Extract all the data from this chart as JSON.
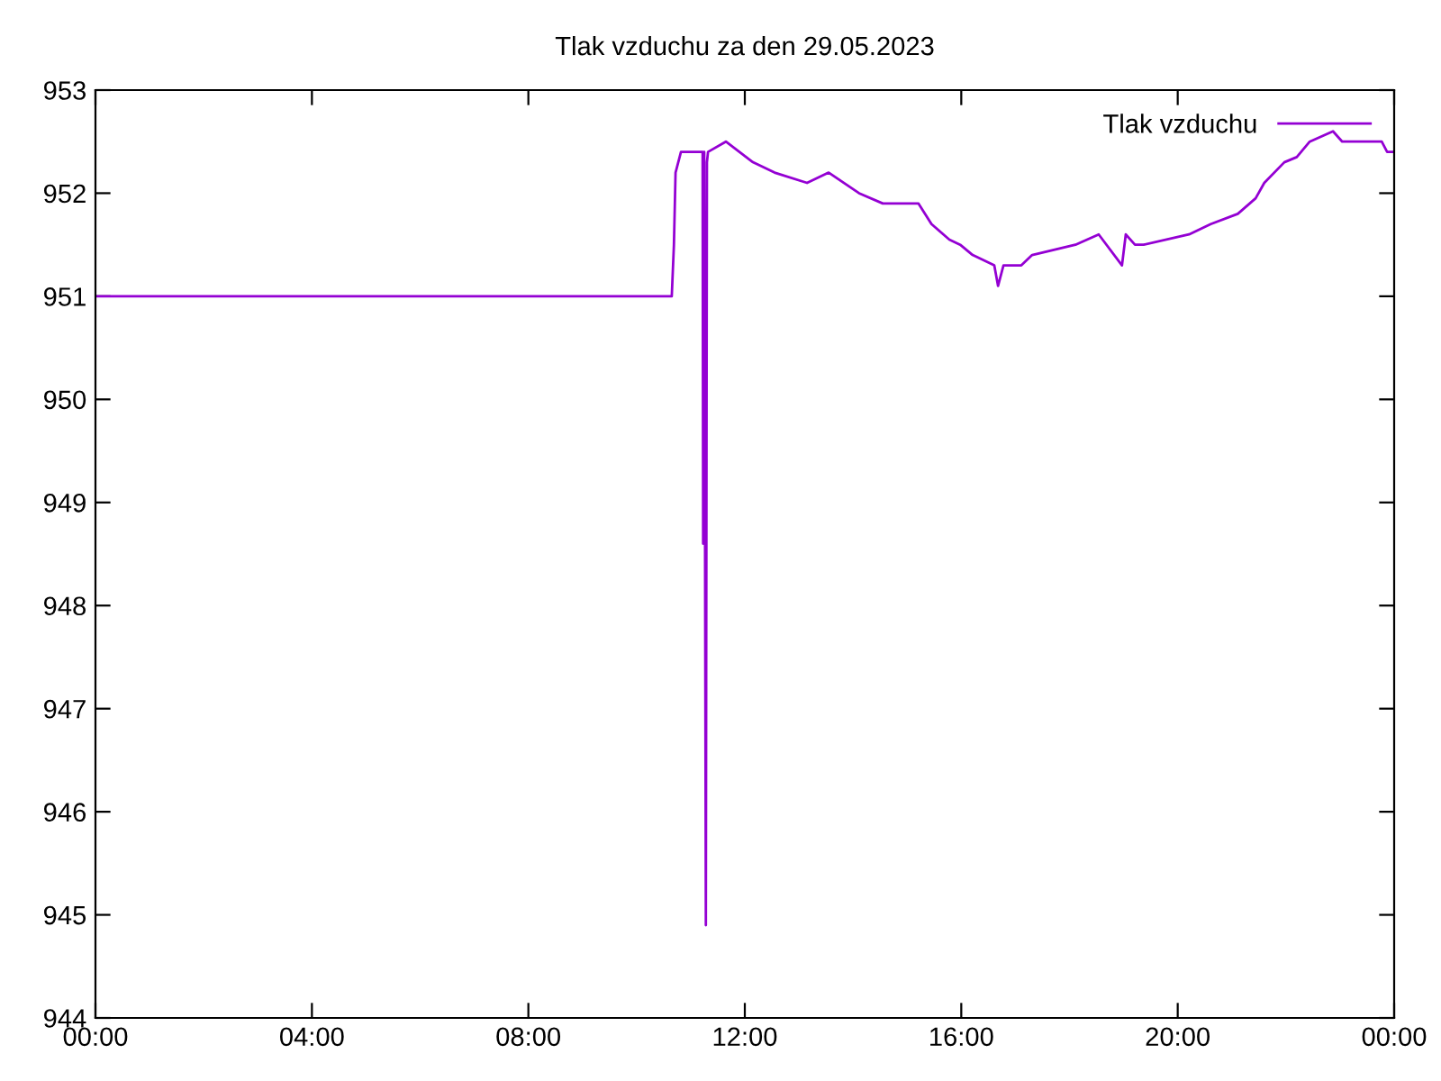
{
  "chart_data": {
    "type": "line",
    "title": "Tlak vzduchu za den 29.05.2023",
    "x": [
      0,
      10.65,
      10.69,
      10.72,
      10.82,
      11.22,
      11.23,
      11.25,
      11.28,
      11.3,
      11.32,
      11.65,
      12.15,
      12.55,
      13.15,
      13.55,
      14.11,
      14.55,
      15.21,
      15.45,
      15.78,
      15.98,
      16.21,
      16.61,
      16.68,
      16.78,
      17.11,
      17.31,
      18.11,
      18.54,
      18.97,
      19.04,
      19.21,
      19.37,
      20.21,
      20.61,
      21.11,
      21.44,
      21.6,
      21.97,
      22.2,
      22.44,
      22.87,
      23.04,
      23.77,
      23.87,
      24
    ],
    "series": [
      {
        "name": "Tlak vzduchu",
        "color": "#9400d3",
        "values": [
          951,
          951,
          951.5,
          952.2,
          952.4,
          952.4,
          948.6,
          952.4,
          944.9,
          952.3,
          952.4,
          952.5,
          952.3,
          952.2,
          952.1,
          952.2,
          952.0,
          951.9,
          951.9,
          951.7,
          951.55,
          951.5,
          951.4,
          951.3,
          951.1,
          951.3,
          951.3,
          951.4,
          951.5,
          951.6,
          951.3,
          951.6,
          951.5,
          951.5,
          951.6,
          951.7,
          951.8,
          951.95,
          952.1,
          952.3,
          952.35,
          952.5,
          952.6,
          952.5,
          952.5,
          952.4,
          952.4
        ]
      }
    ],
    "xlim": [
      0,
      24
    ],
    "xticks": [
      {
        "value": 0,
        "label": "00:00"
      },
      {
        "value": 4,
        "label": "04:00"
      },
      {
        "value": 8,
        "label": "08:00"
      },
      {
        "value": 12,
        "label": "12:00"
      },
      {
        "value": 16,
        "label": "16:00"
      },
      {
        "value": 20,
        "label": "20:00"
      },
      {
        "value": 24,
        "label": "00:00"
      }
    ],
    "ylim": [
      944,
      953
    ],
    "yticks": [
      944,
      945,
      946,
      947,
      948,
      949,
      950,
      951,
      952,
      953
    ],
    "legend": "top right",
    "grid": false
  }
}
